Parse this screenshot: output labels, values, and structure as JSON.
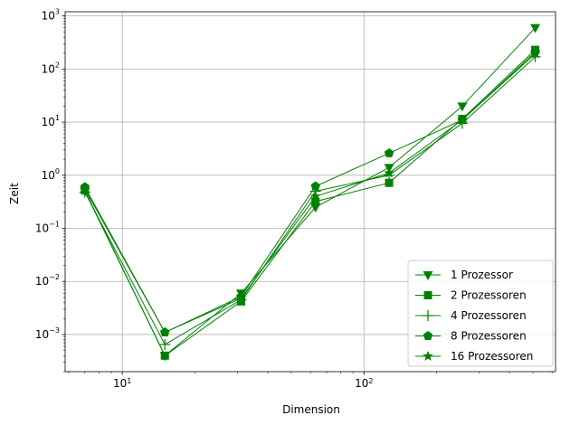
{
  "chart_data": {
    "type": "line",
    "xlabel": "Dimension",
    "ylabel": "Zeit",
    "xscale": "log",
    "yscale": "log",
    "xlim": [
      5.8,
      620
    ],
    "ylim": [
      0.0002,
      1200
    ],
    "grid": true,
    "legend_position": "bottom-right",
    "x_ticks": [
      {
        "value": 10,
        "base": "10",
        "exp": "1"
      },
      {
        "value": 100,
        "base": "10",
        "exp": "2"
      }
    ],
    "y_ticks": [
      {
        "value": 0.001,
        "base": "10",
        "exp": "−3"
      },
      {
        "value": 0.01,
        "base": "10",
        "exp": "−2"
      },
      {
        "value": 0.1,
        "base": "10",
        "exp": "−1"
      },
      {
        "value": 1,
        "base": "10",
        "exp": "0"
      },
      {
        "value": 10,
        "base": "10",
        "exp": "1"
      },
      {
        "value": 100,
        "base": "10",
        "exp": "2"
      },
      {
        "value": 1000,
        "base": "10",
        "exp": "3"
      }
    ],
    "x": [
      7,
      15,
      31,
      63,
      127,
      255,
      511
    ],
    "series": [
      {
        "name": "1 Prozessor",
        "marker": "triangle-down",
        "color": "#008000",
        "values": [
          0.5,
          0.0004,
          0.006,
          0.25,
          1.4,
          20,
          600
        ]
      },
      {
        "name": "2 Prozessoren",
        "marker": "square",
        "color": "#008000",
        "values": [
          0.52,
          0.0004,
          0.0042,
          0.32,
          0.72,
          11.5,
          230
        ]
      },
      {
        "name": "4 Prozessoren",
        "marker": "plus",
        "color": "#008000",
        "values": [
          0.48,
          0.00065,
          0.0045,
          0.5,
          1.0,
          9.5,
          170
        ]
      },
      {
        "name": "8 Prozessoren",
        "marker": "pentagon",
        "color": "#008000",
        "values": [
          0.6,
          0.0011,
          0.0052,
          0.62,
          2.6,
          11,
          210
        ]
      },
      {
        "name": "16 Prozessoren",
        "marker": "star",
        "color": "#008000",
        "values": [
          0.55,
          0.0011,
          0.0048,
          0.4,
          1.1,
          11,
          195
        ]
      }
    ]
  }
}
